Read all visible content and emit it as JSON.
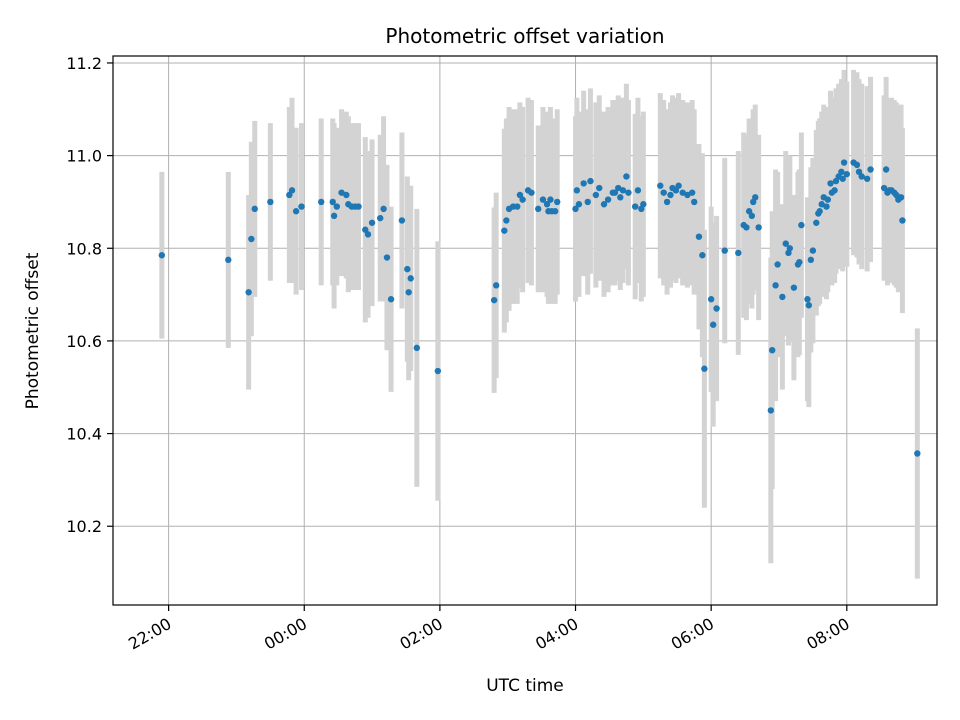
{
  "chart_data": {
    "type": "scatter",
    "title": "Photometric offset variation",
    "xlabel": "UTC time",
    "ylabel": "Photometric offset",
    "x_unit": "hours (UTC, continuing past midnight)",
    "xlim": [
      21.18,
      33.33
    ],
    "ylim": [
      10.03,
      11.215
    ],
    "x_ticks": [
      {
        "value": 22,
        "label": "22:00"
      },
      {
        "value": 24,
        "label": "00:00"
      },
      {
        "value": 26,
        "label": "02:00"
      },
      {
        "value": 28,
        "label": "04:00"
      },
      {
        "value": 30,
        "label": "06:00"
      },
      {
        "value": 32,
        "label": "08:00"
      }
    ],
    "y_ticks": [
      {
        "value": 10.2,
        "label": "10.2"
      },
      {
        "value": 10.4,
        "label": "10.4"
      },
      {
        "value": 10.6,
        "label": "10.6"
      },
      {
        "value": 10.8,
        "label": "10.8"
      },
      {
        "value": 11.0,
        "label": "11.0"
      },
      {
        "value": 11.2,
        "label": "11.2"
      }
    ],
    "grid": true,
    "colors": {
      "points": "#1f77b4",
      "error_bars": "#d3d3d3",
      "grid": "#b0b0b0"
    },
    "points": [
      [
        21.9,
        10.785,
        0.18
      ],
      [
        22.88,
        10.775,
        0.19
      ],
      [
        23.18,
        10.705,
        0.21
      ],
      [
        23.22,
        10.82,
        0.21
      ],
      [
        23.27,
        10.885,
        0.19
      ],
      [
        23.5,
        10.9,
        0.17
      ],
      [
        23.78,
        10.915,
        0.19
      ],
      [
        23.82,
        10.925,
        0.2
      ],
      [
        23.88,
        10.88,
        0.18
      ],
      [
        23.96,
        10.89,
        0.18
      ],
      [
        24.25,
        10.9,
        0.18
      ],
      [
        24.42,
        10.9,
        0.18
      ],
      [
        24.44,
        10.87,
        0.2
      ],
      [
        24.48,
        10.89,
        0.17
      ],
      [
        24.55,
        10.92,
        0.18
      ],
      [
        24.62,
        10.915,
        0.18
      ],
      [
        24.65,
        10.895,
        0.19
      ],
      [
        24.7,
        10.89,
        0.18
      ],
      [
        24.75,
        10.89,
        0.18
      ],
      [
        24.8,
        10.89,
        0.18
      ],
      [
        24.9,
        10.84,
        0.2
      ],
      [
        24.94,
        10.83,
        0.18
      ],
      [
        25.0,
        10.855,
        0.18
      ],
      [
        25.12,
        10.865,
        0.18
      ],
      [
        25.17,
        10.885,
        0.2
      ],
      [
        25.22,
        10.78,
        0.2
      ],
      [
        25.28,
        10.69,
        0.2
      ],
      [
        25.44,
        10.86,
        0.19
      ],
      [
        25.52,
        10.755,
        0.2
      ],
      [
        25.54,
        10.705,
        0.19
      ],
      [
        25.57,
        10.735,
        0.2
      ],
      [
        25.66,
        10.585,
        0.3
      ],
      [
        25.97,
        10.535,
        0.28
      ],
      [
        26.8,
        10.688,
        0.2
      ],
      [
        26.83,
        10.72,
        0.2
      ],
      [
        26.95,
        10.838,
        0.22
      ],
      [
        26.98,
        10.86,
        0.22
      ],
      [
        27.02,
        10.885,
        0.22
      ],
      [
        27.08,
        10.89,
        0.21
      ],
      [
        27.14,
        10.89,
        0.21
      ],
      [
        27.18,
        10.915,
        0.2
      ],
      [
        27.22,
        10.905,
        0.2
      ],
      [
        27.3,
        10.925,
        0.2
      ],
      [
        27.35,
        10.92,
        0.2
      ],
      [
        27.45,
        10.885,
        0.18
      ],
      [
        27.52,
        10.905,
        0.2
      ],
      [
        27.58,
        10.895,
        0.2
      ],
      [
        27.6,
        10.88,
        0.2
      ],
      [
        27.63,
        10.905,
        0.2
      ],
      [
        27.65,
        10.88,
        0.2
      ],
      [
        27.7,
        10.88,
        0.2
      ],
      [
        27.73,
        10.9,
        0.2
      ],
      [
        28.0,
        10.885,
        0.2
      ],
      [
        28.02,
        10.925,
        0.2
      ],
      [
        28.05,
        10.895,
        0.2
      ],
      [
        28.12,
        10.94,
        0.2
      ],
      [
        28.18,
        10.9,
        0.2
      ],
      [
        28.22,
        10.945,
        0.2
      ],
      [
        28.3,
        10.915,
        0.2
      ],
      [
        28.35,
        10.93,
        0.2
      ],
      [
        28.42,
        10.895,
        0.2
      ],
      [
        28.48,
        10.905,
        0.2
      ],
      [
        28.55,
        10.92,
        0.2
      ],
      [
        28.58,
        10.92,
        0.2
      ],
      [
        28.63,
        10.93,
        0.2
      ],
      [
        28.66,
        10.91,
        0.2
      ],
      [
        28.7,
        10.925,
        0.2
      ],
      [
        28.75,
        10.955,
        0.2
      ],
      [
        28.78,
        10.92,
        0.2
      ],
      [
        28.88,
        10.89,
        0.2
      ],
      [
        28.92,
        10.925,
        0.2
      ],
      [
        28.97,
        10.885,
        0.2
      ],
      [
        29.0,
        10.895,
        0.2
      ],
      [
        29.25,
        10.935,
        0.2
      ],
      [
        29.3,
        10.92,
        0.2
      ],
      [
        29.35,
        10.9,
        0.2
      ],
      [
        29.4,
        10.915,
        0.2
      ],
      [
        29.43,
        10.93,
        0.2
      ],
      [
        29.48,
        10.925,
        0.2
      ],
      [
        29.52,
        10.935,
        0.2
      ],
      [
        29.58,
        10.92,
        0.2
      ],
      [
        29.65,
        10.915,
        0.2
      ],
      [
        29.72,
        10.92,
        0.2
      ],
      [
        29.75,
        10.9,
        0.2
      ],
      [
        29.82,
        10.825,
        0.2
      ],
      [
        29.87,
        10.785,
        0.22
      ],
      [
        29.9,
        10.54,
        0.3
      ],
      [
        30.0,
        10.69,
        0.2
      ],
      [
        30.03,
        10.635,
        0.22
      ],
      [
        30.08,
        10.67,
        0.2
      ],
      [
        30.2,
        10.795,
        0.2
      ],
      [
        30.4,
        10.79,
        0.22
      ],
      [
        30.48,
        10.85,
        0.2
      ],
      [
        30.52,
        10.845,
        0.2
      ],
      [
        30.56,
        10.88,
        0.2
      ],
      [
        30.6,
        10.87,
        0.2
      ],
      [
        30.62,
        10.9,
        0.2
      ],
      [
        30.65,
        10.91,
        0.2
      ],
      [
        30.7,
        10.845,
        0.2
      ],
      [
        30.88,
        10.45,
        0.33
      ],
      [
        30.9,
        10.58,
        0.3
      ],
      [
        30.95,
        10.72,
        0.25
      ],
      [
        30.98,
        10.765,
        0.2
      ],
      [
        31.05,
        10.695,
        0.2
      ],
      [
        31.1,
        10.81,
        0.2
      ],
      [
        31.14,
        10.79,
        0.2
      ],
      [
        31.16,
        10.8,
        0.2
      ],
      [
        31.22,
        10.715,
        0.2
      ],
      [
        31.28,
        10.765,
        0.2
      ],
      [
        31.3,
        10.77,
        0.2
      ],
      [
        31.33,
        10.85,
        0.2
      ],
      [
        31.42,
        10.69,
        0.22
      ],
      [
        31.44,
        10.677,
        0.22
      ],
      [
        31.47,
        10.775,
        0.2
      ],
      [
        31.5,
        10.795,
        0.2
      ],
      [
        31.55,
        10.855,
        0.2
      ],
      [
        31.58,
        10.875,
        0.2
      ],
      [
        31.6,
        10.88,
        0.2
      ],
      [
        31.63,
        10.895,
        0.2
      ],
      [
        31.66,
        10.91,
        0.2
      ],
      [
        31.7,
        10.89,
        0.2
      ],
      [
        31.72,
        10.905,
        0.2
      ],
      [
        31.76,
        10.94,
        0.2
      ],
      [
        31.78,
        10.92,
        0.2
      ],
      [
        31.82,
        10.925,
        0.2
      ],
      [
        31.84,
        10.945,
        0.2
      ],
      [
        31.88,
        10.955,
        0.2
      ],
      [
        31.92,
        10.965,
        0.2
      ],
      [
        31.94,
        10.95,
        0.2
      ],
      [
        31.96,
        10.985,
        0.2
      ],
      [
        32.0,
        10.96,
        0.2
      ],
      [
        32.1,
        10.985,
        0.2
      ],
      [
        32.15,
        10.98,
        0.2
      ],
      [
        32.18,
        10.965,
        0.2
      ],
      [
        32.22,
        10.955,
        0.2
      ],
      [
        32.3,
        10.95,
        0.2
      ],
      [
        32.35,
        10.97,
        0.2
      ],
      [
        32.55,
        10.93,
        0.2
      ],
      [
        32.58,
        10.97,
        0.2
      ],
      [
        32.6,
        10.92,
        0.2
      ],
      [
        32.63,
        10.925,
        0.2
      ],
      [
        32.66,
        10.925,
        0.2
      ],
      [
        32.7,
        10.92,
        0.2
      ],
      [
        32.73,
        10.915,
        0.2
      ],
      [
        32.76,
        10.905,
        0.2
      ],
      [
        32.8,
        10.91,
        0.2
      ],
      [
        32.82,
        10.86,
        0.2
      ],
      [
        33.04,
        10.357,
        0.27
      ]
    ]
  }
}
